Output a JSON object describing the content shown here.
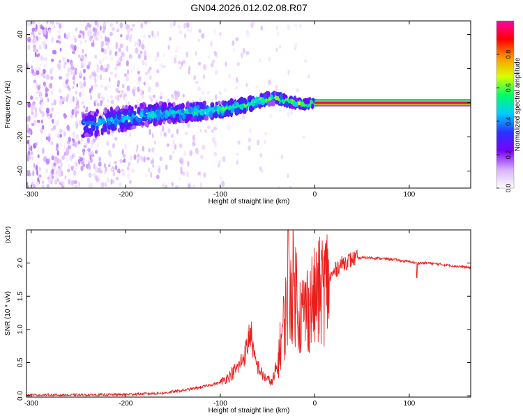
{
  "title": "GN04.2026.012.02.08.R07",
  "colors": {
    "snr_line": "#e8201c",
    "axes": "#000000",
    "background": "#ffffff"
  },
  "chart_data": [
    {
      "type": "heatmap",
      "xlabel": "Height of straight line (km)",
      "ylabel": "Frequency (Hz)",
      "xlim": [
        -305,
        165
      ],
      "ylim": [
        -50,
        48
      ],
      "x_ticks": [
        -300,
        -200,
        -100,
        0,
        100
      ],
      "y_ticks": [
        -40,
        -20,
        0,
        20,
        40
      ],
      "grid": false,
      "colorbar": {
        "label": "Normalized spectral amplitude",
        "range": [
          0,
          1
        ],
        "ticks": [
          "0.0",
          "0.2",
          "0.4",
          "0.6",
          "0.8"
        ],
        "colormap": [
          "#ffffff",
          "#d9b0ff",
          "#7a00ff",
          "#2a32ff",
          "#00ccff",
          "#00ff66",
          "#d8ff00",
          "#ff9900",
          "#ff0000",
          "#ff00aa"
        ]
      },
      "ridge": {
        "points_km_hz": [
          [
            -240,
            -13
          ],
          [
            -220,
            -11
          ],
          [
            -200,
            -9
          ],
          [
            -180,
            -7
          ],
          [
            -160,
            -6
          ],
          [
            -140,
            -6
          ],
          [
            -120,
            -5
          ],
          [
            -100,
            -4
          ],
          [
            -80,
            -2
          ],
          [
            -70,
            -1
          ],
          [
            -60,
            1
          ],
          [
            -50,
            2
          ],
          [
            -40,
            3
          ],
          [
            -30,
            1
          ],
          [
            -20,
            0
          ],
          [
            -10,
            -1
          ],
          [
            0,
            0
          ],
          [
            10,
            0
          ],
          [
            165,
            0
          ]
        ],
        "steady_freq_hz": 0,
        "steady_from_km": 0
      }
    },
    {
      "type": "line",
      "xlabel": "Height of straight line (km)",
      "ylabel": "SNR (10 * v/v)",
      "y_multiplier": "(x10⁴)",
      "xlim": [
        -305,
        165
      ],
      "ylim": [
        -0.02,
        2.5
      ],
      "x_ticks": [
        -300,
        -200,
        -100,
        0,
        100
      ],
      "y_ticks": [
        "0.0",
        "0.5",
        "1.0",
        "1.5",
        "2.0"
      ],
      "grid": false,
      "series": [
        {
          "color": "#e8201c",
          "x": [
            -305,
            -250,
            -200,
            -160,
            -140,
            -120,
            -100,
            -90,
            -80,
            -72,
            -68,
            -64,
            -55,
            -45,
            -40,
            -35,
            -30,
            -25,
            -20,
            -15,
            -10,
            -5,
            0,
            5,
            10,
            15,
            20,
            25,
            30,
            40,
            50,
            60,
            80,
            100,
            108,
            120,
            140,
            165
          ],
          "y": [
            0.01,
            0.01,
            0.02,
            0.04,
            0.08,
            0.13,
            0.2,
            0.3,
            0.45,
            0.7,
            1.0,
            0.55,
            0.3,
            0.2,
            0.4,
            0.9,
            1.3,
            1.7,
            1.6,
            1.2,
            1.3,
            1.4,
            1.45,
            1.55,
            1.65,
            1.75,
            1.85,
            1.95,
            2.0,
            2.06,
            2.08,
            2.08,
            2.06,
            2.02,
            2.0,
            2.0,
            1.97,
            1.93
          ]
        }
      ]
    }
  ]
}
